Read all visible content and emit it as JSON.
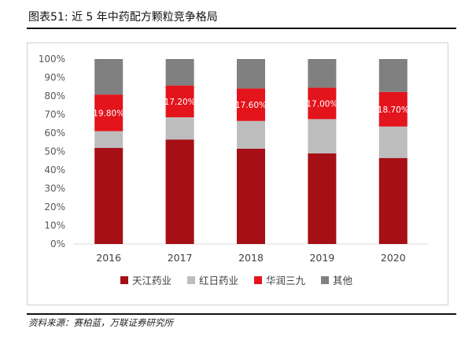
{
  "header": {
    "title": "图表51: 近 5 年中药配方颗粒竞争格局"
  },
  "footer": {
    "source": "资料来源：赛柏蓝，万联证券研究所"
  },
  "chart_data": {
    "type": "bar",
    "stacked": true,
    "categories": [
      "2016",
      "2017",
      "2018",
      "2019",
      "2020"
    ],
    "ylim": [
      0,
      100
    ],
    "yticks": [
      "0%",
      "10%",
      "20%",
      "30%",
      "40%",
      "50%",
      "60%",
      "70%",
      "80%",
      "90%",
      "100%"
    ],
    "grid": false,
    "legend_position": "bottom",
    "series": [
      {
        "name": "天江药业",
        "color": "#a50f15",
        "values": [
          52,
          56.5,
          51.5,
          49,
          46.5
        ]
      },
      {
        "name": "红日药业",
        "color": "#bdbdbd",
        "values": [
          9,
          12,
          15,
          18.5,
          17
        ]
      },
      {
        "name": "华润三九",
        "color": "#e3141c",
        "values": [
          19.8,
          17.2,
          17.6,
          17,
          18.7
        ],
        "labels": [
          "19.80%",
          "17.20%",
          "17.60%",
          "17.00%",
          "18.70%"
        ]
      },
      {
        "name": "其他",
        "color": "#808080",
        "values": [
          19.2,
          14.3,
          15.9,
          15.5,
          17.8
        ]
      }
    ]
  }
}
